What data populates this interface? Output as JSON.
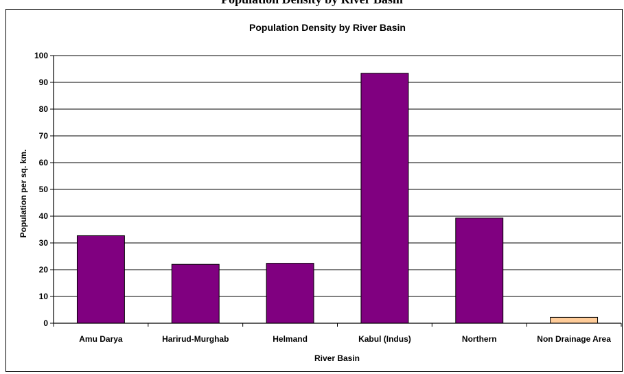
{
  "page_title_partial": "Population Density by River Basin",
  "chart_data": {
    "type": "bar",
    "title": "Population Density by River Basin",
    "xlabel": "River Basin",
    "ylabel": "Population per sq. km.",
    "categories": [
      "Amu Darya",
      "Harirud-Murghab",
      "Helmand",
      "Kabul (Indus)",
      "Northern",
      "Non Drainage Area"
    ],
    "values": [
      32.7,
      22.0,
      22.4,
      93.4,
      39.3,
      2.2
    ],
    "colors": [
      "#800080",
      "#800080",
      "#800080",
      "#800080",
      "#800080",
      "#ffcc99"
    ],
    "ylim": [
      0,
      100
    ],
    "yticks": [
      "0",
      "10",
      "20",
      "30",
      "40",
      "50",
      "60",
      "70",
      "80",
      "90",
      "100"
    ],
    "grid": true,
    "legend": "none"
  }
}
